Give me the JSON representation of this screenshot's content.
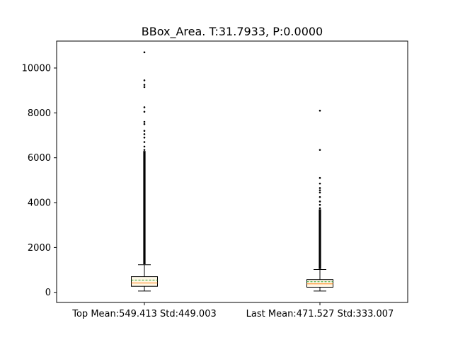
{
  "chart_data": {
    "type": "boxplot",
    "title": "BBox_Area. T:31.7933, P:0.0000",
    "xlabel": "",
    "ylabel": "",
    "ylim": [
      -450,
      11200
    ],
    "yticks": [
      0,
      2000,
      4000,
      6000,
      8000,
      10000
    ],
    "ytick_labels": [
      "0",
      "2000",
      "4000",
      "6000",
      "8000",
      "10000"
    ],
    "categories": [
      "Top Mean:549.413 Std:449.003",
      "Last Mean:471.527 Std:333.007"
    ],
    "grid": false,
    "colors": {
      "box": "#000000",
      "median": "#ff7f0e",
      "mean": "#2ca02c",
      "box_fill": "#fff8e7"
    },
    "boxes": [
      {
        "category": "Top Mean:549.413 Std:449.003",
        "whisker_low": 60,
        "q1": 270,
        "median": 420,
        "mean": 549.413,
        "q3": 700,
        "whisker_high": 1230,
        "outlier_span": [
          1250,
          6300
        ],
        "outliers": [
          6350,
          6500,
          6700,
          6900,
          7050,
          7200,
          7500,
          7600,
          8050,
          8250,
          9150,
          9250,
          9450,
          10700
        ]
      },
      {
        "category": "Last Mean:471.527 Std:333.007",
        "whisker_low": 60,
        "q1": 230,
        "median": 380,
        "mean": 471.527,
        "q3": 570,
        "whisker_high": 1020,
        "outlier_span": [
          1040,
          3700
        ],
        "outliers": [
          3750,
          3900,
          4050,
          4250,
          4450,
          4550,
          4650,
          4850,
          5100,
          6350,
          8100
        ]
      }
    ]
  }
}
